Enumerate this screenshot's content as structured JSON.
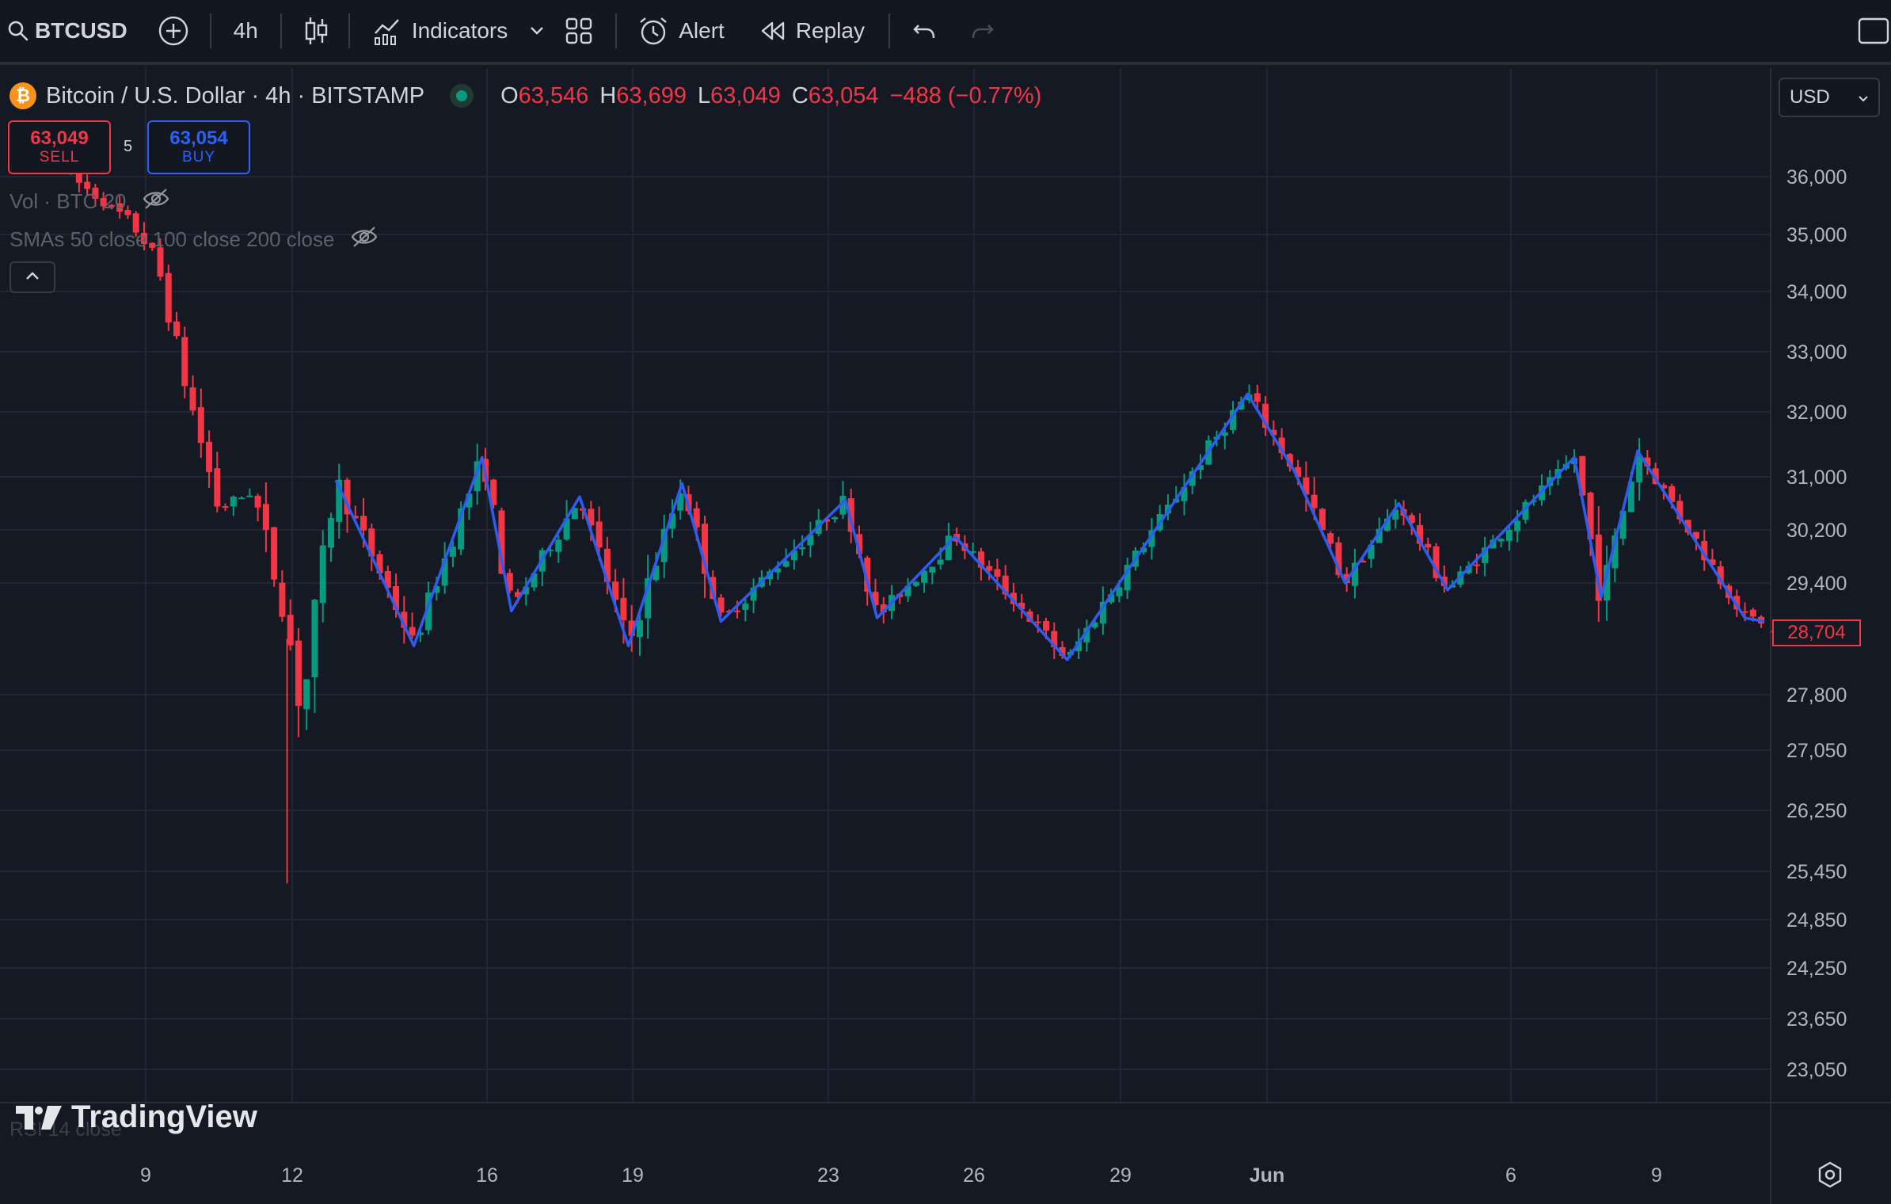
{
  "toolbar": {
    "symbol": "BTCUSD",
    "interval": "4h",
    "indicators_label": "Indicators",
    "alert_label": "Alert",
    "replay_label": "Replay"
  },
  "legend": {
    "logo_glyph": "₿",
    "title": "Bitcoin / U.S. Dollar · 4h · BITSTAMP",
    "open_key": "O",
    "open": "63,546",
    "high_key": "H",
    "high": "63,699",
    "low_key": "L",
    "low": "63,049",
    "close_key": "C",
    "close": "63,054",
    "change": "−488 (−0.77%)"
  },
  "trade": {
    "sell_price": "63,049",
    "sell_label": "SELL",
    "buy_price": "63,054",
    "buy_label": "BUY",
    "spread": "5"
  },
  "indicators": {
    "volume": "Vol · BTC 20",
    "smas": "SMAs 50 close 100 close 200 close",
    "rsi": "RSI 14 close"
  },
  "currency": "USD",
  "last_price": "28,704",
  "brand": "TradingView",
  "colors": {
    "up": "#089981",
    "down": "#f23645",
    "zigzag": "#2f5cf0",
    "background": "#151924"
  },
  "chart_data": {
    "type": "candlestick",
    "x_ticks": [
      "9",
      "12",
      "16",
      "19",
      "23",
      "26",
      "29",
      "Jun",
      "6",
      "9"
    ],
    "y_ticks": [
      "36,000",
      "35,000",
      "34,000",
      "33,000",
      "32,000",
      "31,000",
      "30,200",
      "29,400",
      "27,800",
      "27,050",
      "26,250",
      "25,450",
      "24,850",
      "24,250",
      "23,650",
      "23,050"
    ],
    "last_price": 28704,
    "zigzag_points": [
      {
        "x": 12.9,
        "y": 30950
      },
      {
        "x": 14.5,
        "y": 28500
      },
      {
        "x": 15.9,
        "y": 31300
      },
      {
        "x": 16.5,
        "y": 29000
      },
      {
        "x": 17.9,
        "y": 30700
      },
      {
        "x": 18.9,
        "y": 28500
      },
      {
        "x": 20.0,
        "y": 30900
      },
      {
        "x": 20.8,
        "y": 28850
      },
      {
        "x": 23.35,
        "y": 30650
      },
      {
        "x": 24.0,
        "y": 28900
      },
      {
        "x": 25.6,
        "y": 30100
      },
      {
        "x": 27.9,
        "y": 28300
      },
      {
        "x": 31.6,
        "y": 32300
      },
      {
        "x": 32.55,
        "y": 31100
      },
      {
        "x": 33.6,
        "y": 29400
      },
      {
        "x": 34.7,
        "y": 30600
      },
      {
        "x": 35.7,
        "y": 29300
      },
      {
        "x": 38.3,
        "y": 31300
      },
      {
        "x": 38.85,
        "y": 29200
      },
      {
        "x": 39.6,
        "y": 31400
      },
      {
        "x": 41.8,
        "y": 28900
      },
      {
        "x": 42.2,
        "y": 28850
      }
    ]
  }
}
